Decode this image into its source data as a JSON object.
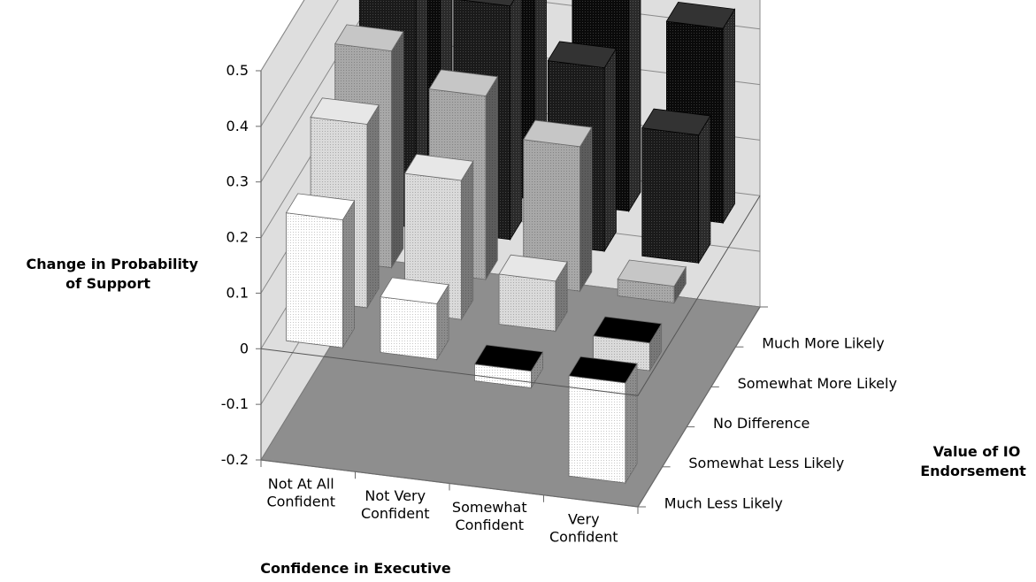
{
  "chart_data": {
    "type": "bar3d",
    "title": "",
    "ylabel": [
      "Change in Probability",
      "of Support"
    ],
    "xlabel": "Confidence in Executive",
    "zlabel": [
      "Value of IO",
      "Endorsement"
    ],
    "ylim": [
      -0.2,
      0.5
    ],
    "yticks": [
      "0.5",
      "0.4",
      "0.3",
      "0.2",
      "0.1",
      "0",
      "-0.1",
      "-0.2"
    ],
    "categories": [
      [
        "Not At All",
        "Confident"
      ],
      [
        "Not Very",
        "Confident"
      ],
      [
        "Somewhat",
        "Confident"
      ],
      [
        "Very",
        "Confident"
      ]
    ],
    "series": [
      {
        "name": "Much More Likely",
        "color": "#0a0a0a",
        "values": [
          0.5,
          0.47,
          0.46,
          0.35
        ]
      },
      {
        "name": "Somewhat More Likely",
        "color": "#1a1a1a",
        "values": [
          0.44,
          0.42,
          0.33,
          0.23
        ]
      },
      {
        "name": "No Difference",
        "color": "#a8a8a8",
        "values": [
          0.39,
          0.33,
          0.26,
          0.03
        ]
      },
      {
        "name": "Somewhat Less Likely",
        "color": "#dadada",
        "values": [
          0.33,
          0.25,
          0.09,
          -0.05
        ]
      },
      {
        "name": "Much Less Likely",
        "color": "#ffffff",
        "values": [
          0.23,
          0.1,
          -0.03,
          -0.18
        ]
      }
    ],
    "grid": true,
    "floor_color": "#8e8e8e",
    "wall_color": "#dedede"
  }
}
